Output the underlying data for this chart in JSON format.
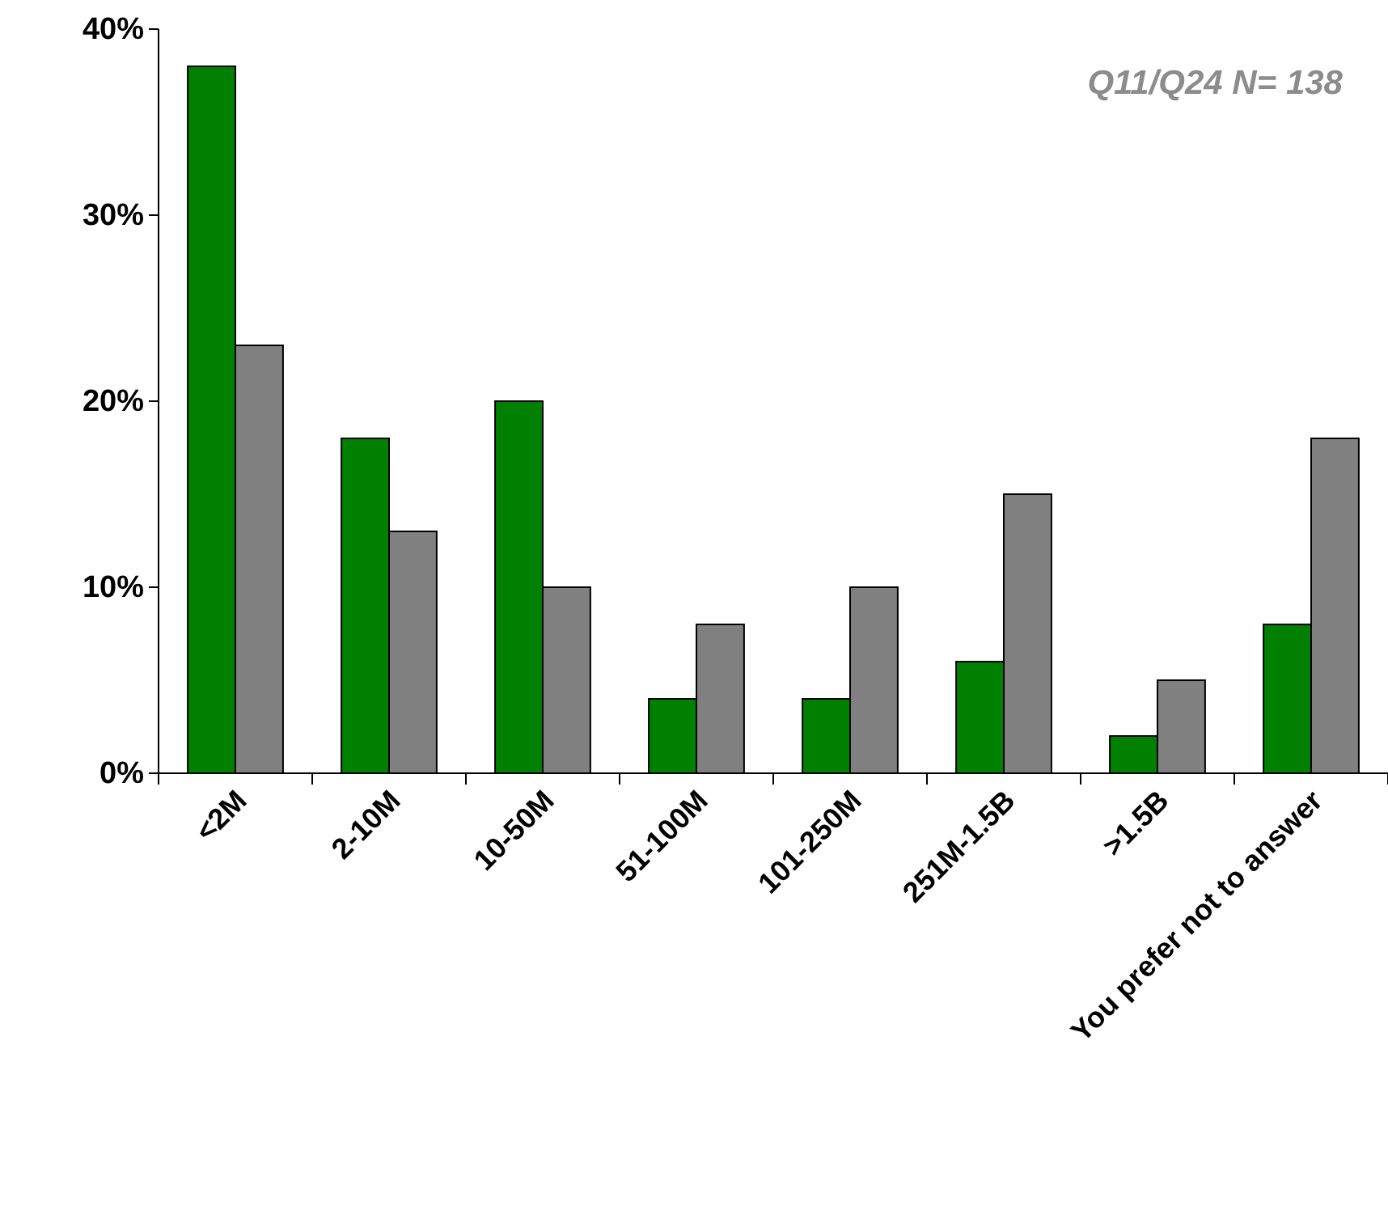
{
  "chart_data": {
    "type": "bar",
    "categories": [
      "<2M",
      "2-10M",
      "10-50M",
      "51-100M",
      "101-250M",
      "251M-1.5B",
      ">1.5B",
      "You prefer not to answer"
    ],
    "series": [
      {
        "color": "#008000",
        "values": [
          38,
          18,
          20,
          4,
          4,
          6,
          2,
          8
        ]
      },
      {
        "color": "#808080",
        "values": [
          23,
          13,
          10,
          8,
          10,
          15,
          5,
          18
        ]
      }
    ],
    "ylim": [
      0,
      40
    ],
    "yticks": [
      {
        "value": 0,
        "label": "0%"
      },
      {
        "value": 10,
        "label": "10%"
      },
      {
        "value": 20,
        "label": "20%"
      },
      {
        "value": 30,
        "label": "30%"
      },
      {
        "value": 40,
        "label": "40%"
      }
    ],
    "annotations": [
      "Q11/Q24 N= 138"
    ]
  }
}
